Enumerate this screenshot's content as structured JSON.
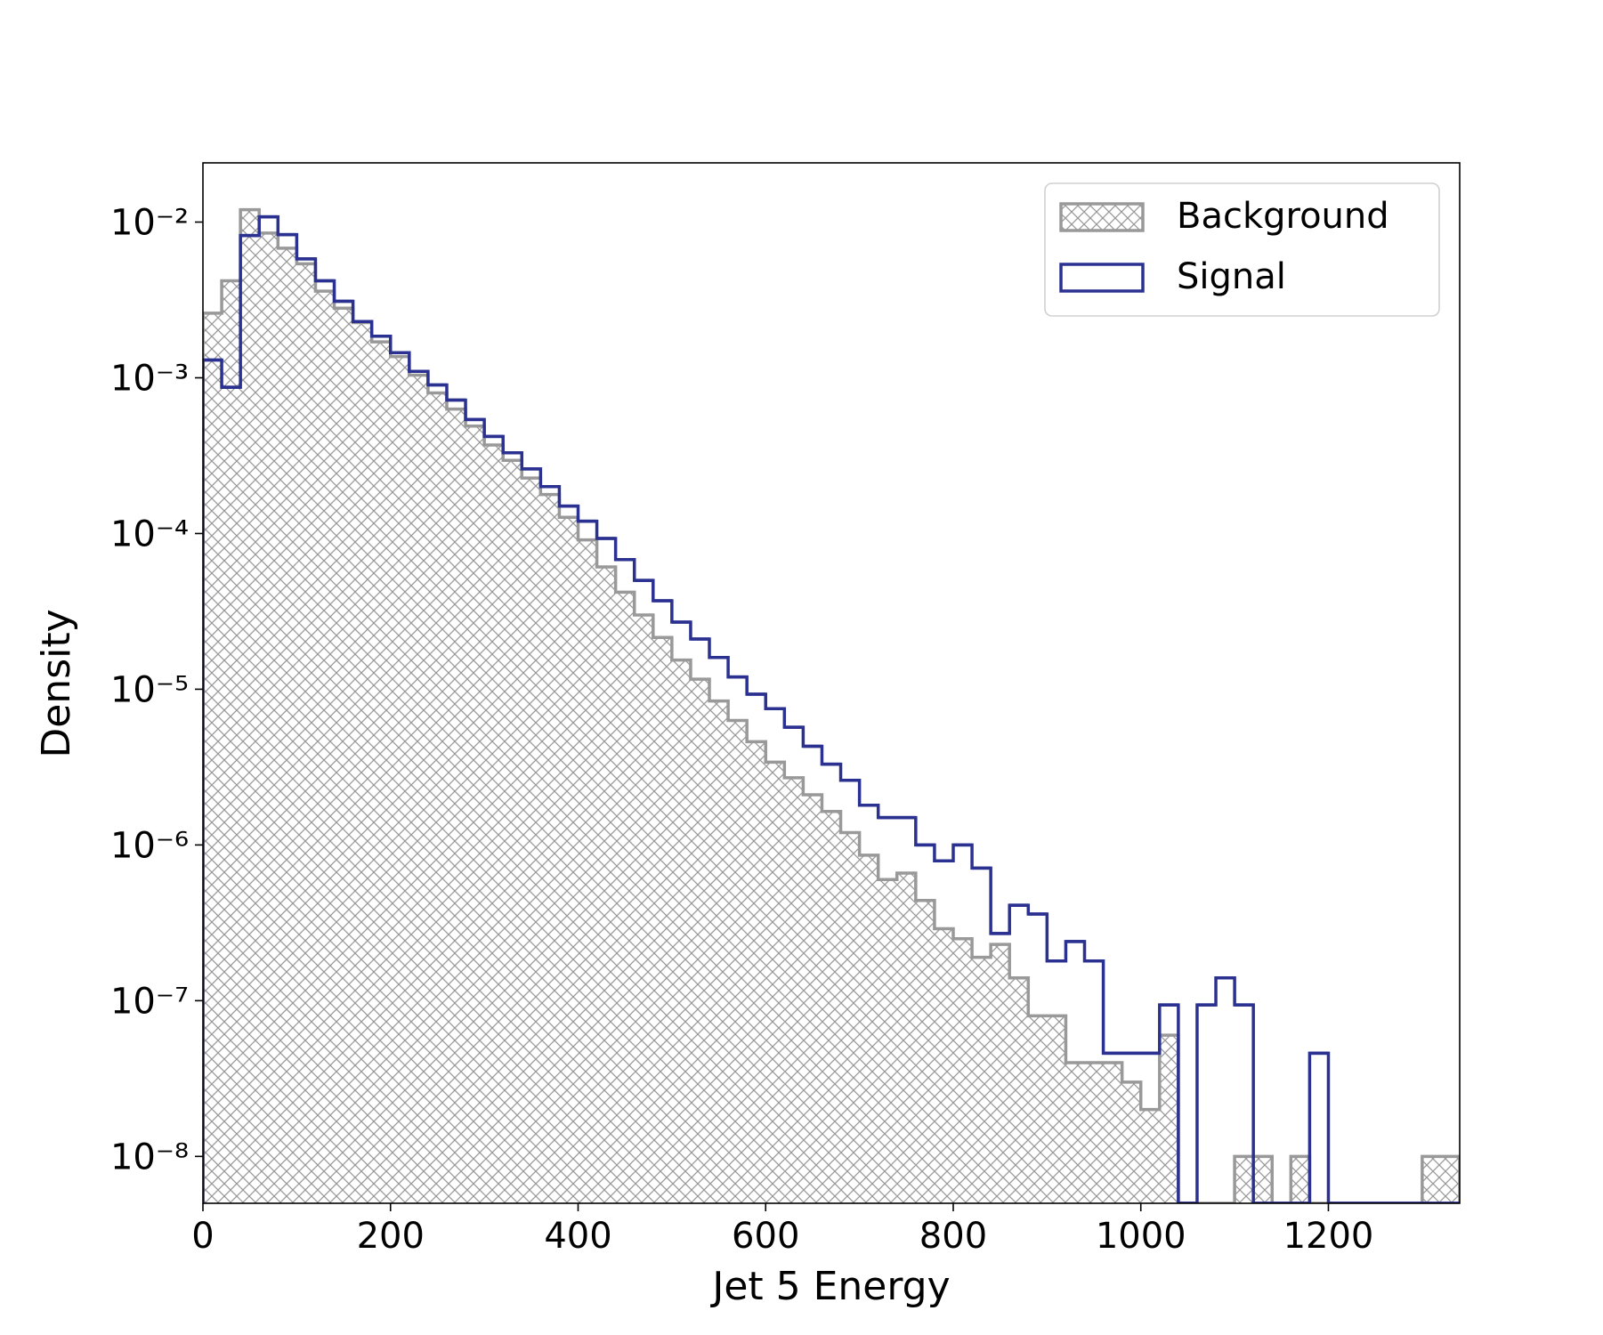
{
  "chart_data": {
    "type": "histogram",
    "xlabel": "Jet 5 Energy",
    "ylabel": "Density",
    "log_y": true,
    "legend": "upper right",
    "bins": [
      0,
      20,
      40,
      60,
      80,
      100,
      120,
      140,
      160,
      180,
      200,
      220,
      240,
      260,
      280,
      300,
      320,
      340,
      360,
      380,
      400,
      420,
      440,
      460,
      480,
      500,
      520,
      540,
      560,
      580,
      600,
      620,
      640,
      660,
      680,
      700,
      720,
      740,
      760,
      780,
      800,
      820,
      840,
      860,
      880,
      900,
      920,
      940,
      960,
      980,
      1000,
      1020,
      1040,
      1060,
      1080,
      1100,
      1120,
      1140,
      1160,
      1180,
      1200,
      1220,
      1240,
      1260,
      1280,
      1300,
      1320,
      1340
    ],
    "xlim": [
      0,
      1340
    ],
    "ylim": [
      5e-09,
      0.024
    ],
    "xticks": [
      0,
      200,
      400,
      600,
      800,
      1000,
      1200
    ],
    "yticks": [
      {
        "value": 1e-08,
        "label": "10⁻⁸"
      },
      {
        "value": 1e-07,
        "label": "10⁻⁷"
      },
      {
        "value": 1e-06,
        "label": "10⁻⁶"
      },
      {
        "value": 1e-05,
        "label": "10⁻⁵"
      },
      {
        "value": 0.0001,
        "label": "10⁻⁴"
      },
      {
        "value": 0.001,
        "label": "10⁻³"
      },
      {
        "value": 0.01,
        "label": "10⁻²"
      }
    ],
    "series": [
      {
        "name": "Background",
        "color": "#999999",
        "hatch": true,
        "values": [
          0.0026,
          0.0042,
          0.012,
          0.0085,
          0.0068,
          0.0054,
          0.0036,
          0.0028,
          0.00226,
          0.0017,
          0.00137,
          0.00104,
          0.0008,
          0.00063,
          0.00049,
          0.00037,
          0.000295,
          0.000227,
          0.000178,
          0.000127,
          9.1e-05,
          6.1e-05,
          4.2e-05,
          3e-05,
          2.15e-05,
          1.54e-05,
          1.16e-05,
          8.4e-06,
          6.3e-06,
          4.6e-06,
          3.4e-06,
          2.7e-06,
          2.1e-06,
          1.64e-06,
          1.2e-06,
          8.6e-07,
          6e-07,
          6.6e-07,
          4.4e-07,
          2.9e-07,
          2.5e-07,
          1.9e-07,
          2.3e-07,
          1.4e-07,
          8e-08,
          8e-08,
          4e-08,
          4e-08,
          4e-08,
          3e-08,
          2e-08,
          6e-08,
          0,
          0,
          0,
          1e-08,
          1e-08,
          0,
          1e-08,
          0,
          0,
          0,
          0,
          0,
          0,
          1e-08,
          1e-08
        ]
      },
      {
        "name": "Signal",
        "color": "#2b3190",
        "hatch": false,
        "values": [
          0.0013,
          0.00087,
          0.0082,
          0.0108,
          0.0083,
          0.0058,
          0.0042,
          0.0031,
          0.0023,
          0.00185,
          0.00145,
          0.0011,
          0.0009,
          0.00072,
          0.00054,
          0.00042,
          0.00033,
          0.00026,
          0.0002,
          0.00015,
          0.00012,
          9.3e-05,
          6.8e-05,
          5e-05,
          3.7e-05,
          2.7e-05,
          2.1e-05,
          1.6e-05,
          1.2e-05,
          9.3e-06,
          7.5e-06,
          5.7e-06,
          4.3e-06,
          3.3e-06,
          2.6e-06,
          1.8e-06,
          1.5e-06,
          1.5e-06,
          1e-06,
          7.9e-07,
          1e-06,
          7.1e-07,
          2.7e-07,
          4.1e-07,
          3.6e-07,
          1.8e-07,
          2.4e-07,
          1.8e-07,
          4.6e-08,
          4.6e-08,
          4.6e-08,
          9.4e-08,
          0,
          9.4e-08,
          1.4e-07,
          9.4e-08,
          0,
          0,
          0,
          4.6e-08,
          0,
          0,
          0,
          0,
          0,
          0,
          0
        ]
      }
    ]
  }
}
